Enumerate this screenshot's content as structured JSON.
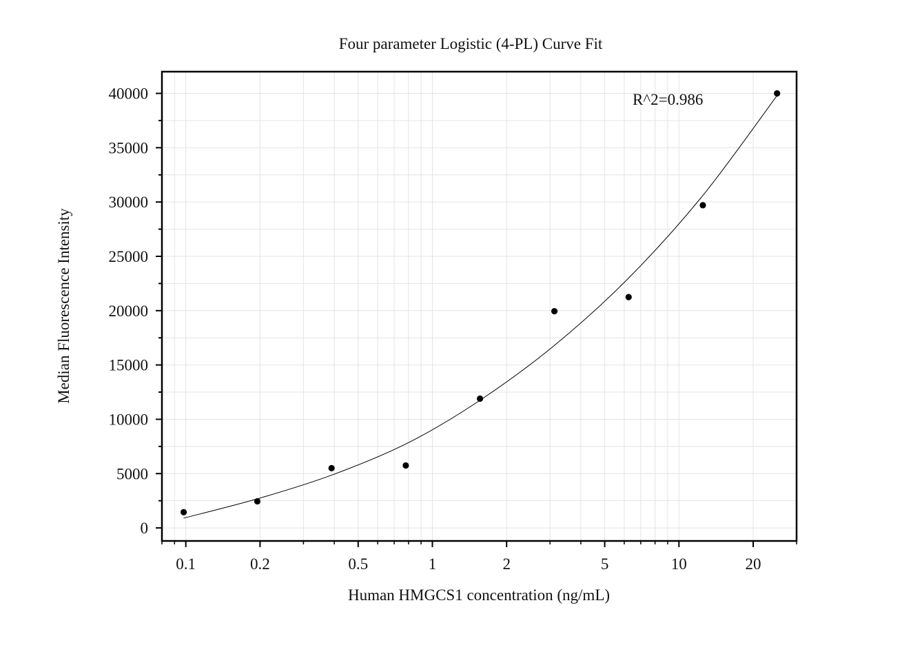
{
  "chart_data": {
    "type": "scatter",
    "title": "Four parameter Logistic (4-PL) Curve Fit",
    "xlabel": "Human HMGCS1 concentration (ng/mL)",
    "ylabel": "Median Fluorescence Intensity",
    "x_scale": "log",
    "xlim": [
      0.08,
      30
    ],
    "ylim": [
      -1200,
      42000
    ],
    "x_ticks": [
      0.1,
      0.2,
      0.5,
      1,
      2,
      5,
      10,
      20
    ],
    "x_tick_labels": [
      "0.1",
      "0.2",
      "0.5",
      "1",
      "2",
      "5",
      "10",
      "20"
    ],
    "y_ticks": [
      0,
      5000,
      10000,
      15000,
      20000,
      25000,
      30000,
      35000,
      40000
    ],
    "y_tick_labels": [
      "0",
      "5000",
      "10000",
      "15000",
      "20000",
      "25000",
      "30000",
      "35000",
      "40000"
    ],
    "grid": true,
    "annotation": "R^2=0.986",
    "points": {
      "x": [
        0.098,
        0.195,
        0.39,
        0.78,
        1.56,
        3.125,
        6.25,
        12.5,
        25
      ],
      "y": [
        1450,
        2450,
        5500,
        5750,
        11900,
        19950,
        21250,
        29700,
        40000
      ]
    },
    "fit_curve": {
      "x": [
        0.098,
        0.2,
        0.4,
        0.8,
        1.56,
        3.125,
        6.25,
        12.5,
        25
      ],
      "y": [
        900,
        2750,
        4950,
        7850,
        11750,
        16800,
        23000,
        30600,
        39800
      ]
    }
  }
}
